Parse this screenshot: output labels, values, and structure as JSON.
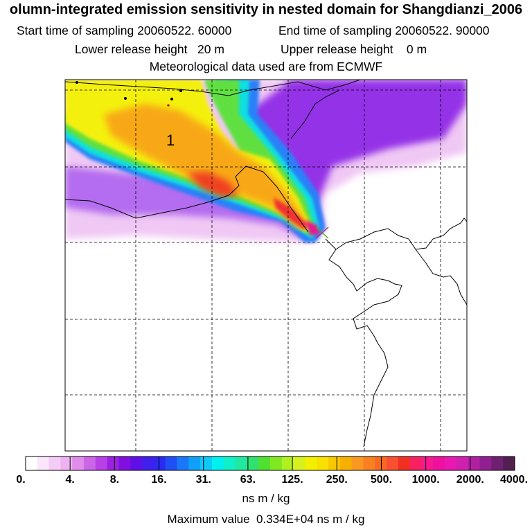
{
  "chart_data": {
    "type": "heatmap",
    "title": "olumn-integrated emission sensitivity in nested domain for Shangdianzi_2006",
    "subtitle": {
      "start": "Start time of sampling 20060522. 60000",
      "end": "End time of sampling 20060522. 90000",
      "lower": "Lower release height   20 m",
      "upper": "Upper release height    0 m",
      "met": "Meteorological data used are from ECMWF"
    },
    "plume_label": "1",
    "colorbar": {
      "unit": "ns m / kg",
      "tick_labels": [
        "0.",
        "4.",
        "8.",
        "16.",
        "31.",
        "63.",
        "125.",
        "250.",
        "500.",
        "1000.",
        "2000.",
        "4000."
      ],
      "colors": [
        "#ffffff",
        "#fae6fa",
        "#f5ccf5",
        "#eeb2f0",
        "#e08ceb",
        "#cc66e8",
        "#b840e6",
        "#9d20e0",
        "#8010e0",
        "#6010e6",
        "#4020ec",
        "#2a2af0",
        "#1e50f5",
        "#1a78f8",
        "#10a0fa",
        "#10c8f8",
        "#00f0f0",
        "#10f0c8",
        "#20e8a0",
        "#30e070",
        "#50e030",
        "#80e820",
        "#b0f020",
        "#d8f020",
        "#f0f000",
        "#f8e000",
        "#f8c800",
        "#f8b000",
        "#f89820",
        "#f88020",
        "#f86820",
        "#f85030",
        "#f03020",
        "#f82060",
        "#f81890",
        "#f010a0",
        "#e818b0",
        "#d020b0",
        "#b020a0",
        "#902090",
        "#702070",
        "#502050"
      ]
    },
    "max_value_text": "Maximum value  0.334E+04 ns m / kg",
    "receptor_marker": "x-marker"
  }
}
